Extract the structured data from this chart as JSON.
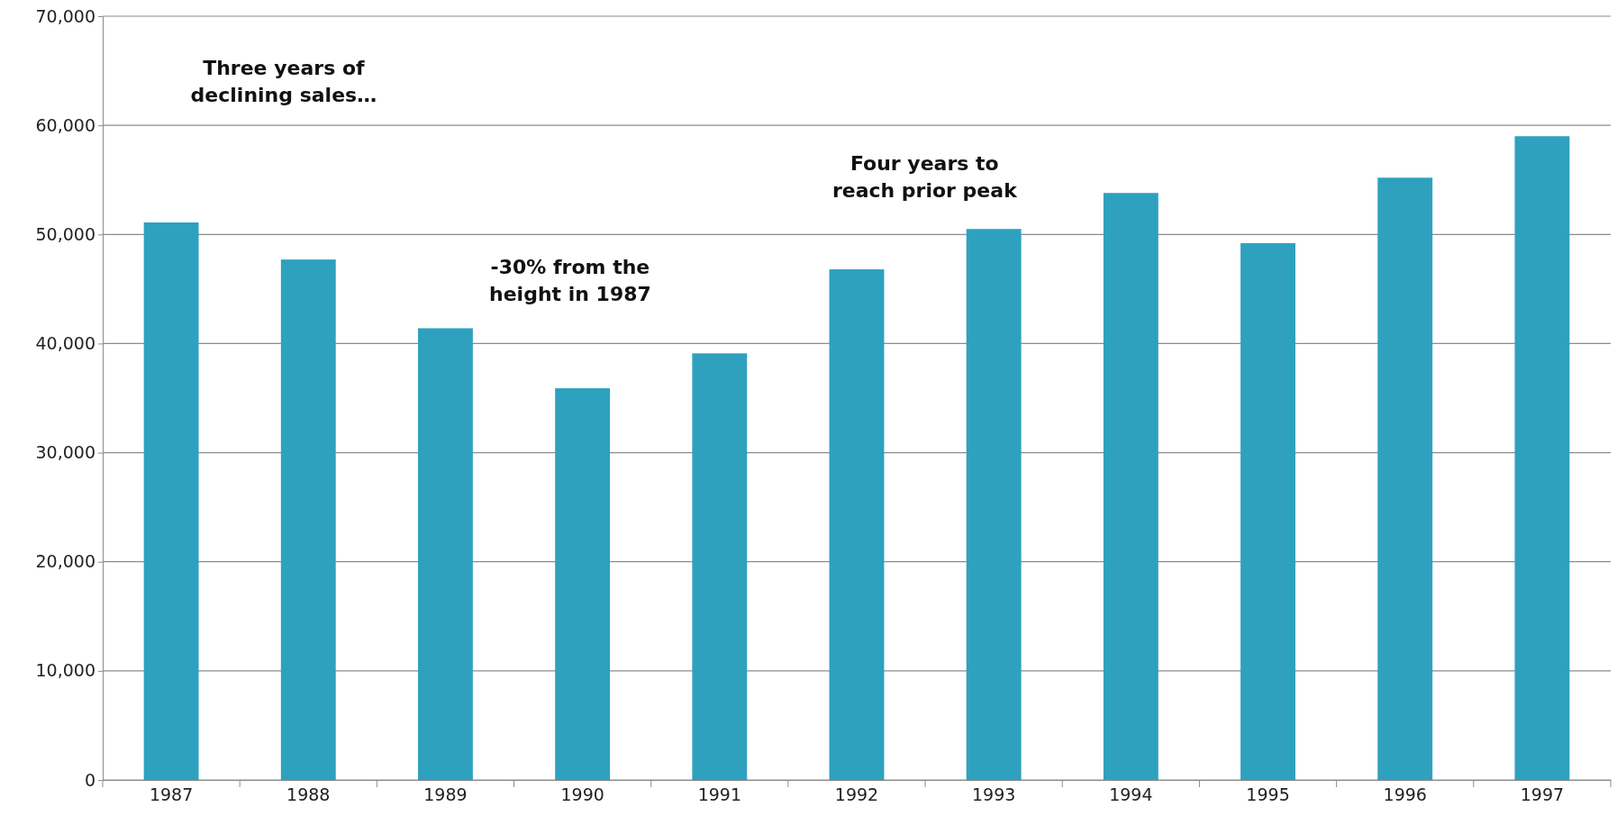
{
  "chart_data": {
    "type": "bar",
    "categories": [
      "1987",
      "1988",
      "1989",
      "1990",
      "1991",
      "1992",
      "1993",
      "1994",
      "1995",
      "1996",
      "1997"
    ],
    "values": [
      51100,
      47700,
      41400,
      35900,
      39100,
      46800,
      50500,
      53800,
      49200,
      55200,
      59000
    ],
    "color": "#2ea1bf",
    "ylim": [
      0,
      70000
    ],
    "yticks": [
      {
        "value": 0,
        "label": "0"
      },
      {
        "value": 10000,
        "label": "10,000"
      },
      {
        "value": 20000,
        "label": "20,000"
      },
      {
        "value": 30000,
        "label": "30,000"
      },
      {
        "value": 40000,
        "label": "40,000"
      },
      {
        "value": 50000,
        "label": "50,000"
      },
      {
        "value": 60000,
        "label": "60,000"
      },
      {
        "value": 70000,
        "label": "70,000"
      }
    ],
    "grid": "y",
    "annotations": [
      "Three years of\ndeclining sales…",
      "-30% from the\nheight in 1987",
      "Four years to\nreach prior peak"
    ]
  }
}
